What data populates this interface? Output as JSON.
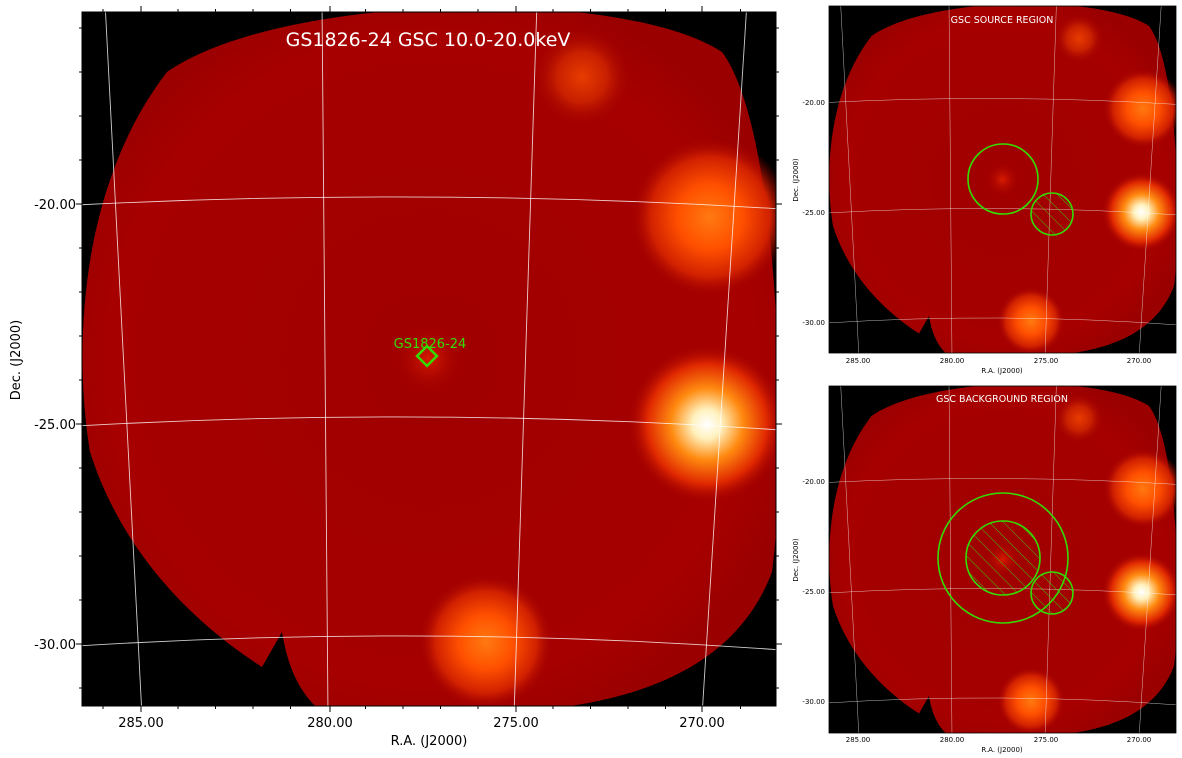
{
  "main": {
    "title": "GS1826-24 GSC 10.0-20.0keV",
    "xlabel": "R.A. (J2000)",
    "ylabel": "Dec. (J2000)",
    "x_ticks": [
      "285.00",
      "280.00",
      "275.00",
      "270.00"
    ],
    "y_ticks": [
      "-20.00",
      "-25.00",
      "-30.00"
    ],
    "source_label": "GS1826-24"
  },
  "source_panel": {
    "title": "GSC SOURCE REGION",
    "xlabel": "R.A. (J2000)",
    "ylabel": "Dec. (J2000)",
    "x_ticks": [
      "285.00",
      "280.00",
      "275.00",
      "270.00"
    ],
    "y_ticks": [
      "-20.00",
      "-25.00",
      "-30.00"
    ]
  },
  "background_panel": {
    "title": "GSC BACKGROUND REGION",
    "xlabel": "R.A. (J2000)",
    "ylabel": "Dec. (J2000)",
    "x_ticks": [
      "285.00",
      "280.00",
      "275.00",
      "270.00"
    ],
    "y_ticks": [
      "-20.00",
      "-25.00",
      "-30.00"
    ]
  },
  "colors": {
    "sky": "#a80000",
    "region": "#33dd00",
    "grid": "#ffffff",
    "outside": "#000000"
  }
}
